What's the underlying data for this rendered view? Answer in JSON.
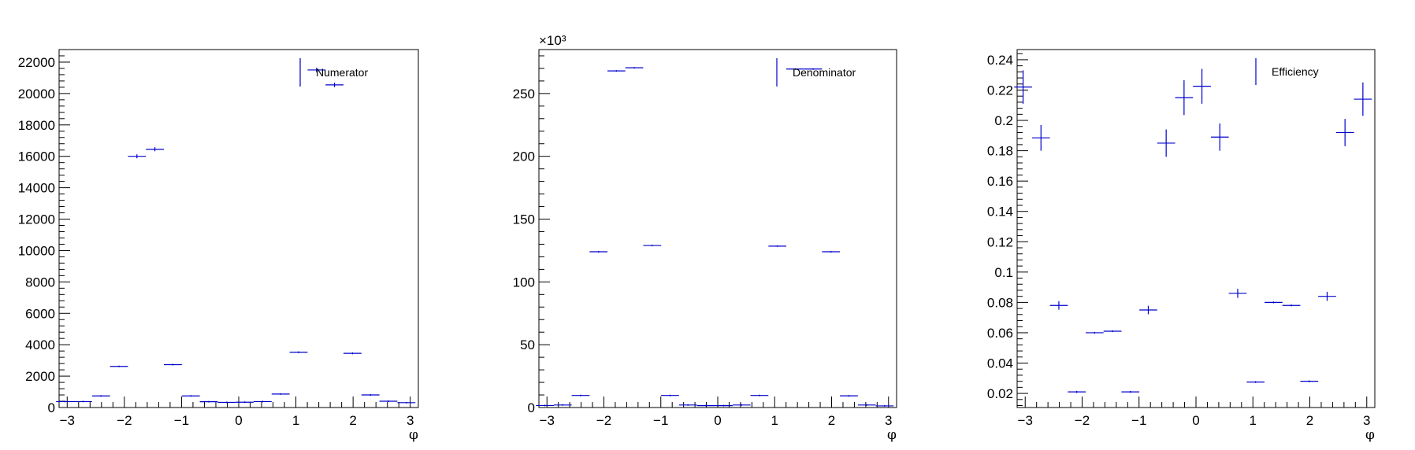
{
  "chart_data": [
    {
      "type": "scatter",
      "xlabel": "φ",
      "ylabel": "",
      "xlim": [
        -3.1416,
        3.1416
      ],
      "ylim": [
        0,
        22800
      ],
      "xticks": [
        -3,
        -2,
        -1,
        0,
        1,
        2,
        3
      ],
      "yticks": [
        0,
        2000,
        4000,
        6000,
        8000,
        10000,
        12000,
        14000,
        16000,
        18000,
        20000,
        22000
      ],
      "ytick_labels": [
        "0",
        "2000",
        "4000",
        "6000",
        "8000",
        "10000",
        "12000",
        "14000",
        "16000",
        "18000",
        "20000",
        "22000"
      ],
      "multiplier": "",
      "legend": {
        "label": "Numerator",
        "position": "top-right"
      },
      "series": [
        {
          "color": "#0000cc",
          "x": [
            -3.0369,
            -2.7227,
            -2.4086,
            -2.0944,
            -1.7802,
            -1.4661,
            -1.1519,
            -0.8378,
            -0.5236,
            -0.2094,
            0.1047,
            0.4189,
            0.733,
            1.0472,
            1.3614,
            1.6755,
            1.9897,
            2.3038,
            2.618,
            2.9322
          ],
          "y": [
            380,
            380,
            740,
            2620,
            16000,
            16450,
            2730,
            740,
            370,
            330,
            340,
            380,
            860,
            3520,
            21500,
            20550,
            3450,
            800,
            400,
            310
          ],
          "yerr": [
            20,
            20,
            27,
            51,
            126,
            128,
            52,
            27,
            19,
            18,
            18,
            19,
            29,
            59,
            147,
            143,
            59,
            28,
            20,
            18
          ]
        }
      ]
    },
    {
      "type": "scatter",
      "xlabel": "φ",
      "ylabel": "",
      "xlim": [
        -3.1416,
        3.1416
      ],
      "ylim": [
        0,
        285
      ],
      "xticks": [
        -3,
        -2,
        -1,
        0,
        1,
        2,
        3
      ],
      "yticks": [
        0,
        50,
        100,
        150,
        200,
        250
      ],
      "ytick_labels": [
        "0",
        "50",
        "100",
        "150",
        "200",
        "250"
      ],
      "multiplier": "×10³",
      "legend": {
        "label": "Denominator",
        "position": "top-right"
      },
      "series": [
        {
          "color": "#0000cc",
          "x": [
            -3.0369,
            -2.7227,
            -2.4086,
            -2.0944,
            -1.7802,
            -1.4661,
            -1.1519,
            -0.8378,
            -0.5236,
            -0.2094,
            0.1047,
            0.4189,
            0.733,
            1.0472,
            1.3614,
            1.6755,
            1.9897,
            2.3038,
            2.618,
            2.9322
          ],
          "y": [
            1.6,
            2.0,
            9.6,
            124,
            268,
            270.5,
            129,
            9.6,
            2.0,
            1.5,
            1.5,
            2.0,
            9.6,
            128.5,
            269.5,
            269.5,
            124,
            9.3,
            2.0,
            1.3
          ],
          "yerr": [
            0.04,
            0.05,
            0.1,
            0.35,
            0.52,
            0.52,
            0.36,
            0.1,
            0.05,
            0.04,
            0.04,
            0.05,
            0.1,
            0.36,
            0.52,
            0.52,
            0.35,
            0.1,
            0.05,
            0.04
          ]
        }
      ]
    },
    {
      "type": "scatter",
      "xlabel": "φ",
      "ylabel": "",
      "xlim": [
        -3.1416,
        3.1416
      ],
      "ylim": [
        0.0107,
        0.2467
      ],
      "xticks": [
        -3,
        -2,
        -1,
        0,
        1,
        2,
        3
      ],
      "yticks": [
        0.02,
        0.04,
        0.06,
        0.08,
        0.1,
        0.12,
        0.14,
        0.16,
        0.18,
        0.2,
        0.22,
        0.24
      ],
      "ytick_labels": [
        "0.02",
        "0.04",
        "0.06",
        "0.08",
        "0.1",
        "0.12",
        "0.14",
        "0.16",
        "0.18",
        "0.2",
        "0.22",
        "0.24"
      ],
      "multiplier": "",
      "legend": {
        "label": "Efficiency",
        "position": "top-center"
      },
      "series": [
        {
          "color": "#0000cc",
          "x": [
            -3.0369,
            -2.7227,
            -2.4086,
            -2.0944,
            -1.7802,
            -1.4661,
            -1.1519,
            -0.8378,
            -0.5236,
            -0.2094,
            0.1047,
            0.4189,
            0.733,
            1.0472,
            1.3614,
            1.6755,
            1.9897,
            2.3038,
            2.618,
            2.9322
          ],
          "y": [
            0.222,
            0.1885,
            0.078,
            0.021,
            0.06,
            0.061,
            0.021,
            0.075,
            0.185,
            0.215,
            0.2225,
            0.189,
            0.086,
            0.0275,
            0.08,
            0.078,
            0.028,
            0.084,
            0.192,
            0.214
          ],
          "yerr": [
            0.011,
            0.0085,
            0.0028,
            0.0007,
            0.0006,
            0.0006,
            0.0006,
            0.0028,
            0.009,
            0.0115,
            0.0115,
            0.009,
            0.003,
            0.0006,
            0.0006,
            0.0006,
            0.0006,
            0.003,
            0.009,
            0.011
          ]
        }
      ]
    }
  ]
}
